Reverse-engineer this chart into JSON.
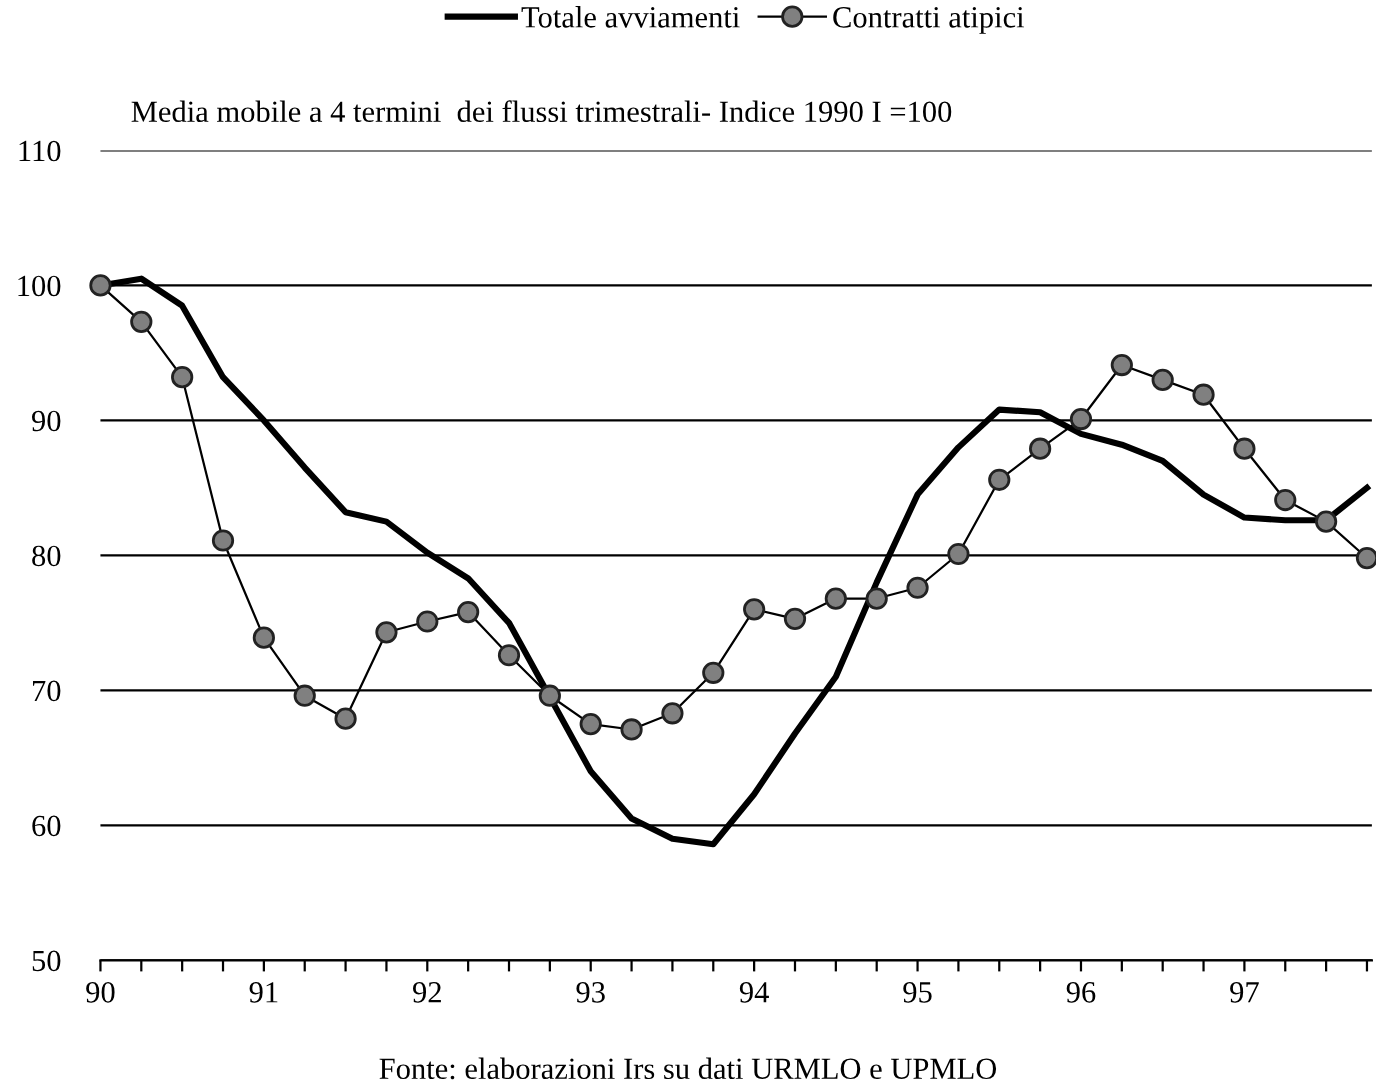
{
  "chart_data": {
    "type": "line",
    "subtitle": "Media mobile a 4 termini  dei flussi trimestrali- Indice 1990 I =100",
    "x": [
      90,
      90.25,
      90.5,
      90.75,
      91,
      91.25,
      91.5,
      91.75,
      92,
      92.25,
      92.5,
      92.75,
      93,
      93.25,
      93.5,
      93.75,
      94,
      94.25,
      94.5,
      94.75,
      95,
      95.25,
      95.5,
      95.75,
      96,
      96.25,
      96.5,
      96.75,
      97,
      97.25,
      97.5,
      97.75
    ],
    "series": [
      {
        "name": "Totale avviamenti",
        "color": "#000000",
        "marker": "none",
        "values": [
          100,
          100.5,
          98.5,
          93.2,
          90,
          86.5,
          83.2,
          82.5,
          80.2,
          78.3,
          75,
          69.5,
          64,
          60.5,
          59,
          58.6,
          62.3,
          66.8,
          71,
          78,
          84.5,
          88,
          90.8,
          90.6,
          89,
          88.2,
          87,
          84.5,
          82.8,
          82.6,
          82.6,
          85
        ]
      },
      {
        "name": "Contratti atipici",
        "color": "#808080",
        "marker": "circle",
        "values": [
          100,
          97.3,
          93.2,
          81.1,
          73.9,
          69.6,
          67.9,
          74.3,
          75.1,
          75.8,
          72.6,
          69.6,
          67.5,
          67.1,
          68.3,
          71.3,
          76,
          75.3,
          76.8,
          76.8,
          77.6,
          80.1,
          85.6,
          87.9,
          90.1,
          94.1,
          93,
          91.9,
          87.9,
          84.1,
          82.5,
          79.8
        ]
      }
    ],
    "xlim": [
      90,
      97.78
    ],
    "xticks": [
      90,
      {
        "value": 90.25,
        "label": null
      },
      {
        "value": 90.5,
        "label": null
      },
      {
        "value": 90.75,
        "label": null
      },
      91,
      {
        "value": 91.25,
        "label": null
      },
      {
        "value": 91.5,
        "label": null
      },
      {
        "value": 91.75,
        "label": null
      },
      92,
      {
        "value": 92.25,
        "label": null
      },
      {
        "value": 92.5,
        "label": null
      },
      {
        "value": 92.75,
        "label": null
      },
      93,
      {
        "value": 93.25,
        "label": null
      },
      {
        "value": 93.5,
        "label": null
      },
      {
        "value": 93.75,
        "label": null
      },
      94,
      {
        "value": 94.25,
        "label": null
      },
      {
        "value": 94.5,
        "label": null
      },
      {
        "value": 94.75,
        "label": null
      },
      95,
      {
        "value": 95.25,
        "label": null
      },
      {
        "value": 95.5,
        "label": null
      },
      {
        "value": 95.75,
        "label": null
      },
      96,
      {
        "value": 96.25,
        "label": null
      },
      {
        "value": 96.5,
        "label": null
      },
      {
        "value": 96.75,
        "label": null
      },
      97,
      {
        "value": 97.25,
        "label": null
      },
      {
        "value": 97.5,
        "label": null
      },
      {
        "value": 97.75,
        "label": null
      }
    ],
    "ylim": [
      50,
      110
    ],
    "yticks": [
      50,
      60,
      70,
      80,
      90,
      100,
      110
    ],
    "grid": "y",
    "legend": "top",
    "annotations": [
      "Fonte: elaborazioni Irs su dati URMLO e UPMLO"
    ]
  }
}
